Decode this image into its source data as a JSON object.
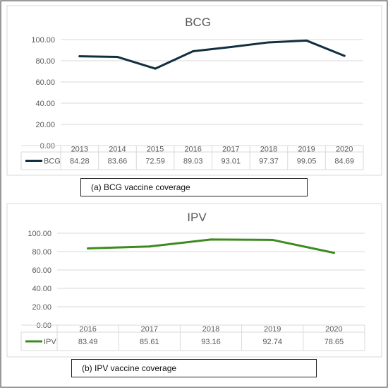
{
  "chart_data": [
    {
      "type": "line",
      "title": "BCG",
      "x": [
        "2013",
        "2014",
        "2015",
        "2016",
        "2017",
        "2018",
        "2019",
        "2020"
      ],
      "series": [
        {
          "name": "BCG",
          "values": [
            84.28,
            83.66,
            72.59,
            89.03,
            93.01,
            97.37,
            99.05,
            84.69
          ],
          "color": "#10303f"
        }
      ],
      "ylim": [
        0,
        100
      ],
      "yticks": [
        "0.00",
        "20.00",
        "40.00",
        "60.00",
        "80.00",
        "100.00"
      ],
      "grid": true,
      "data_table": true,
      "caption": "(a)  BCG vaccine coverage"
    },
    {
      "type": "line",
      "title": "IPV",
      "x": [
        "2016",
        "2017",
        "2018",
        "2019",
        "2020"
      ],
      "series": [
        {
          "name": "IPV",
          "values": [
            83.49,
            85.61,
            93.16,
            92.74,
            78.65
          ],
          "color": "#3d8b1f"
        }
      ],
      "ylim": [
        0,
        100
      ],
      "yticks": [
        "0.00",
        "20.00",
        "40.00",
        "60.00",
        "80.00",
        "100.00"
      ],
      "grid": true,
      "data_table": true,
      "caption": "(b)  IPV vaccine coverage"
    }
  ]
}
